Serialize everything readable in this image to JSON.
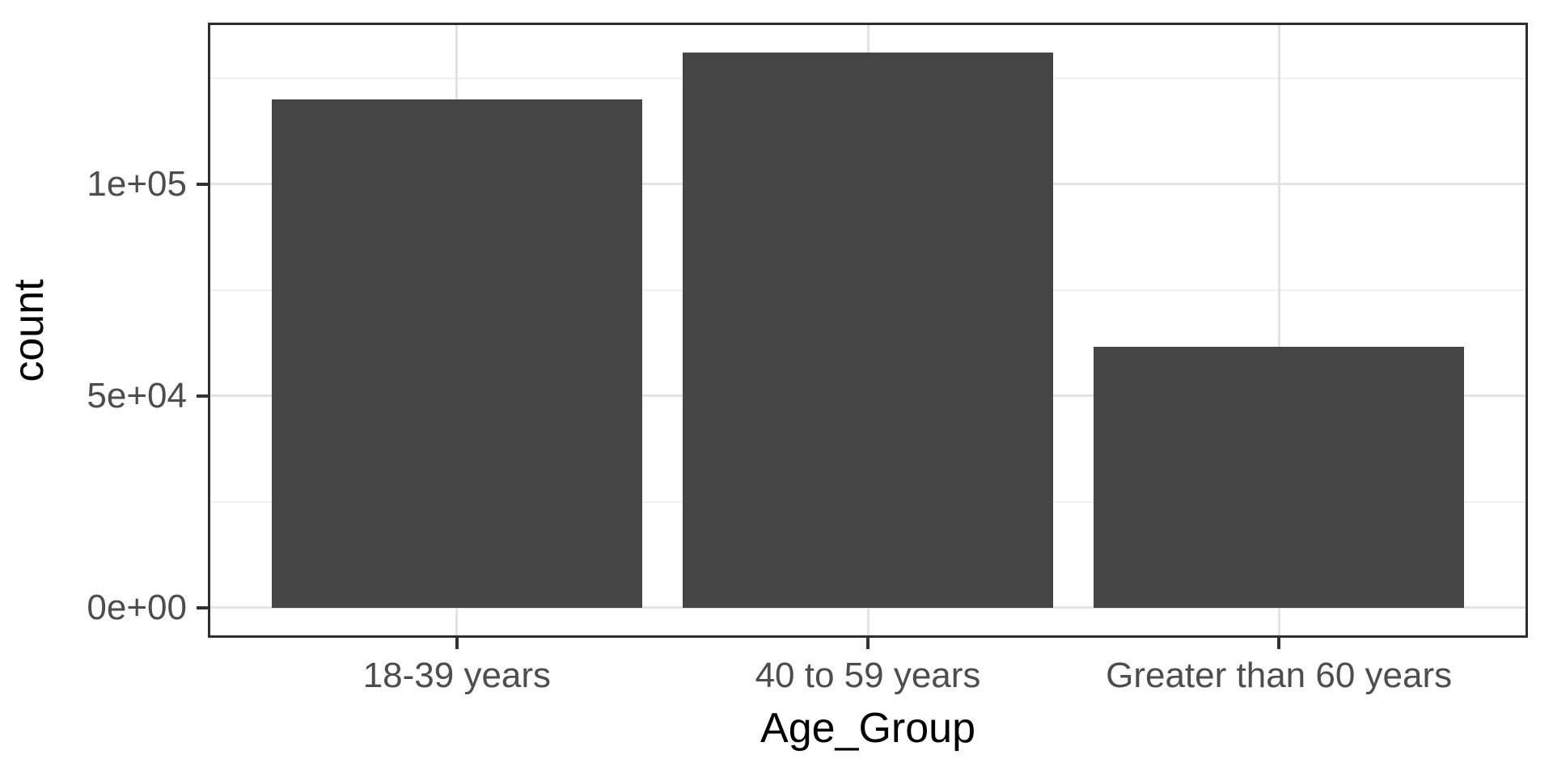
{
  "chart_data": {
    "type": "bar",
    "title": "",
    "xlabel": "Age_Group",
    "ylabel": "count",
    "categories": [
      "18-39 years",
      "40 to 59 years",
      "Greater than 60 years"
    ],
    "values": [
      120000,
      131000,
      61500
    ],
    "ylim": [
      -6550,
      137550
    ],
    "yticks": [
      {
        "value": 0,
        "label": "0e+00"
      },
      {
        "value": 50000,
        "label": "5e+04"
      },
      {
        "value": 100000,
        "label": "1e+05"
      }
    ],
    "yminor": [
      25000,
      75000,
      125000
    ],
    "grid": "on",
    "legend": "none",
    "bar_width_fraction": 0.9,
    "edge_padding_units": 0.6,
    "bar_color": "#454545",
    "axis_line_color": "#2e2e2e",
    "tick_mark_color": "#333333",
    "tick_label_color": "#4d4d4d",
    "major_grid_color": "#e3e3e3",
    "minor_grid_color": "#f0f0f0",
    "background_color": "#ffffff"
  }
}
